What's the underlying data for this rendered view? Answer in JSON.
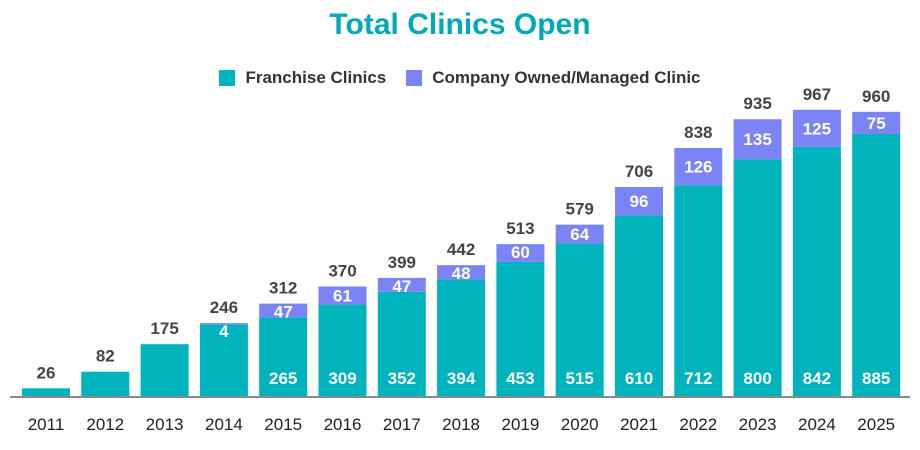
{
  "chart_data": {
    "type": "bar",
    "stacked": true,
    "title": "Total Clinics Open",
    "legend": {
      "placement": "top-center"
    },
    "categories": [
      "2011",
      "2012",
      "2013",
      "2014",
      "2015",
      "2016",
      "2017",
      "2018",
      "2019",
      "2020",
      "2021",
      "2022",
      "2023",
      "2024",
      "2025"
    ],
    "series": [
      {
        "name": "Franchise Clinics",
        "color": "#00b3bd",
        "values": [
          26,
          82,
          175,
          242,
          265,
          309,
          352,
          394,
          453,
          515,
          610,
          712,
          800,
          842,
          885
        ],
        "labels": [
          "",
          "",
          "",
          "",
          "265",
          "309",
          "352",
          "394",
          "453",
          "515",
          "610",
          "712",
          "800",
          "842",
          "885"
        ]
      },
      {
        "name": "Company Owned/Managed Clinic",
        "color": "#7b84f5",
        "values": [
          0,
          0,
          0,
          4,
          47,
          61,
          47,
          48,
          60,
          64,
          96,
          126,
          135,
          125,
          75
        ],
        "labels": [
          "",
          "",
          "",
          "4",
          "47",
          "61",
          "47",
          "48",
          "60",
          "64",
          "96",
          "126",
          "135",
          "125",
          "75"
        ]
      }
    ],
    "totals": [
      26,
      82,
      175,
      246,
      312,
      370,
      399,
      442,
      513,
      579,
      706,
      838,
      935,
      967,
      960
    ],
    "ylim": [
      0,
      1000
    ],
    "grid": false,
    "xlabel": "",
    "ylabel": ""
  }
}
